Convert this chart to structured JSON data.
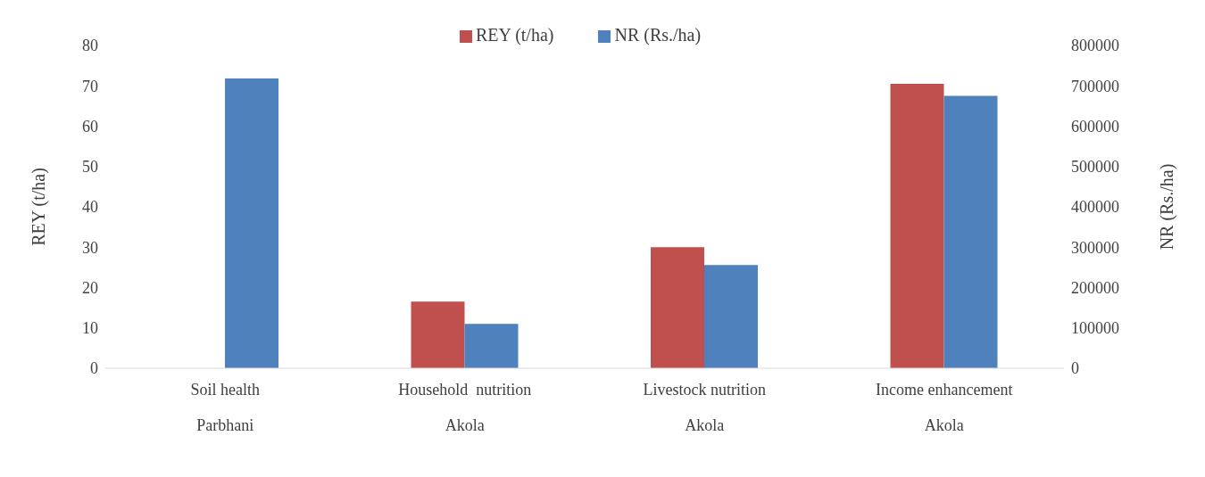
{
  "chart_data": {
    "type": "bar",
    "categories": [
      "Soil health\nParbhani",
      "Household  nutrition\nAkola",
      "Livestock nutrition\nAkola",
      "Income enhancement\nAkola"
    ],
    "series": [
      {
        "name": "REY (t/ha)",
        "color": "#c0504d",
        "values": [
          null,
          16.5,
          30,
          70.5
        ]
      },
      {
        "name": "NR (Rs./ha)",
        "color": "#4f81bd",
        "values": [
          718000,
          110000,
          256000,
          675000
        ],
        "axis": "y2"
      }
    ],
    "ylabel": "REY  (t/ha)",
    "y2label": "NR (Rs./ha)",
    "ylim": [
      0,
      80
    ],
    "yticks": [
      0,
      10,
      20,
      30,
      40,
      50,
      60,
      70,
      80
    ],
    "y2lim": [
      0,
      800000
    ],
    "y2ticks": [
      0,
      100000,
      200000,
      300000,
      400000,
      500000,
      600000,
      700000,
      800000
    ],
    "legend": "top"
  }
}
